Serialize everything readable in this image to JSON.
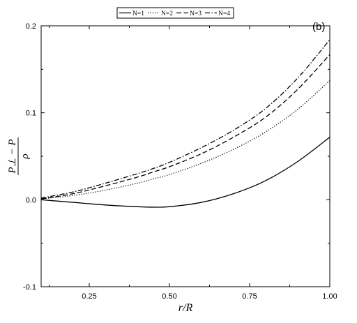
{
  "chart_data": {
    "type": "line",
    "panel_label": "(b)",
    "xlabel": "r/R",
    "ylabel_numerator": "P⊥ − P",
    "ylabel_denominator": "ρ",
    "xlim": [
      0.1,
      1.0
    ],
    "ylim": [
      -0.1,
      0.2
    ],
    "xticks": [
      0.25,
      0.5,
      0.75,
      1.0
    ],
    "xtick_labels": [
      "0.25",
      "0.50",
      "0.75",
      "1.00"
    ],
    "yticks": [
      -0.1,
      0.0,
      0.1,
      0.2
    ],
    "ytick_labels": [
      "-0.1",
      "0.0",
      "0.1",
      "0.2"
    ],
    "grid": false,
    "legend_position": "top",
    "x": [
      0.1,
      0.2,
      0.3,
      0.4,
      0.45,
      0.5,
      0.6,
      0.7,
      0.8,
      0.9,
      1.0
    ],
    "series": [
      {
        "name": "N=1",
        "line_style": "solid",
        "values": [
          0.0,
          -0.003,
          -0.006,
          -0.008,
          -0.0085,
          -0.008,
          -0.003,
          0.007,
          0.022,
          0.044,
          0.072
        ]
      },
      {
        "name": "N=2",
        "line_style": "dotted",
        "values": [
          0.001,
          0.005,
          0.011,
          0.019,
          0.024,
          0.029,
          0.042,
          0.058,
          0.078,
          0.104,
          0.137
        ]
      },
      {
        "name": "N=3",
        "line_style": "dashed",
        "values": [
          0.001,
          0.007,
          0.016,
          0.026,
          0.032,
          0.038,
          0.053,
          0.072,
          0.095,
          0.127,
          0.167
        ]
      },
      {
        "name": "N=4",
        "line_style": "dashdot",
        "values": [
          0.002,
          0.009,
          0.019,
          0.03,
          0.036,
          0.043,
          0.06,
          0.08,
          0.105,
          0.14,
          0.184
        ]
      }
    ]
  }
}
